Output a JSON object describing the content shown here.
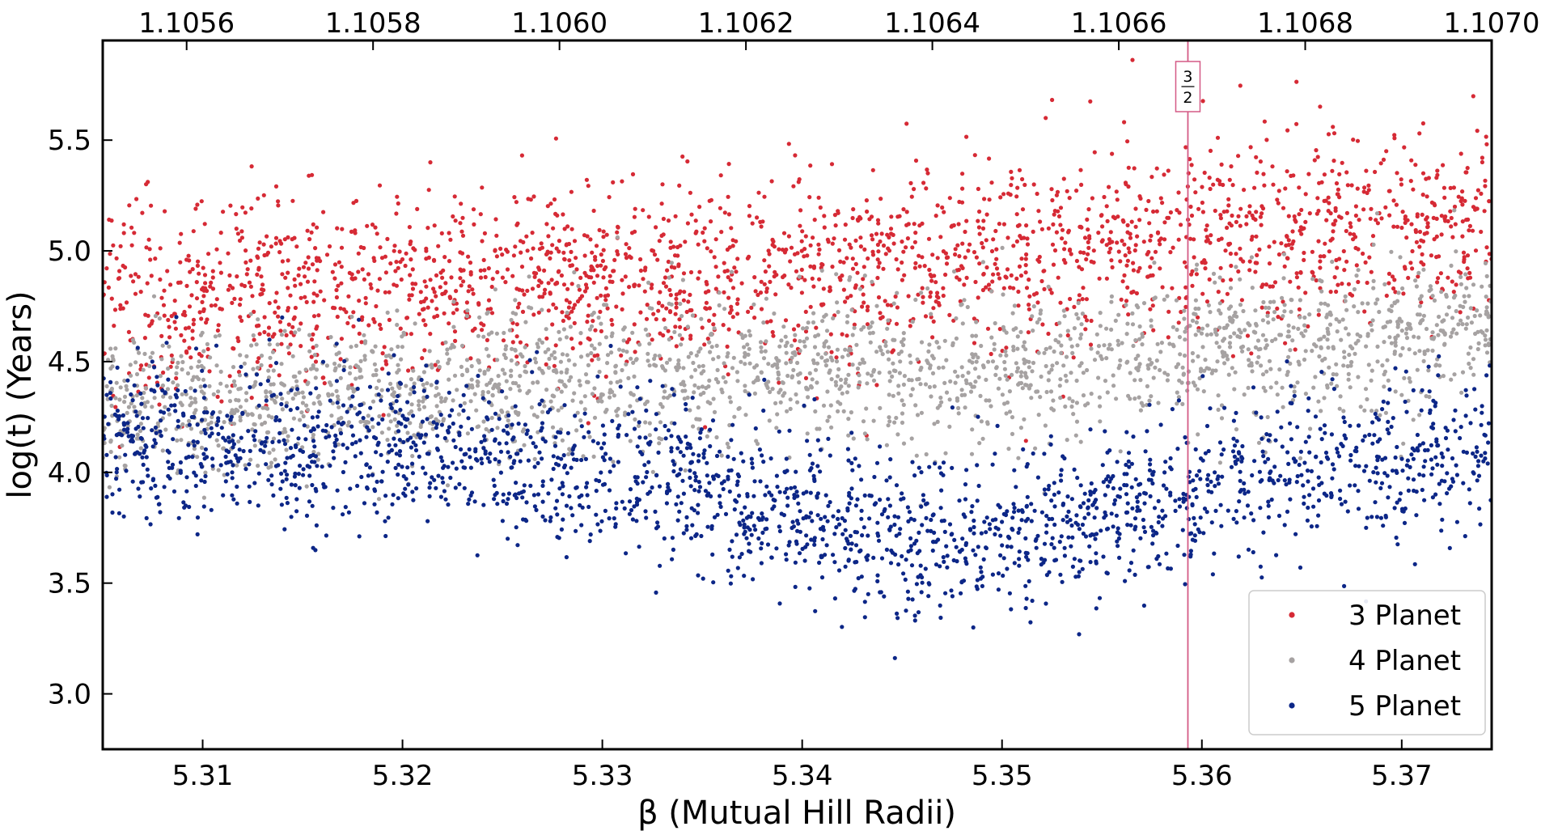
{
  "chart_data": {
    "type": "scatter",
    "title": "",
    "xlabel": "β (Mutual Hill Radii)",
    "ylabel": "log(t) (Years)",
    "xlim": [
      5.305,
      5.3745
    ],
    "ylim": [
      2.75,
      5.95
    ],
    "x_ticks": [
      "5.31",
      "5.32",
      "5.33",
      "5.34",
      "5.35",
      "5.36",
      "5.37"
    ],
    "y_ticks": [
      "3.0",
      "3.5",
      "4.0",
      "4.5",
      "5.0",
      "5.5"
    ],
    "top_axis": {
      "xlim": [
        1.10551,
        1.107
      ],
      "ticks": [
        "1.1056",
        "1.1058",
        "1.1060",
        "1.1062",
        "1.1064",
        "1.1066",
        "1.1068",
        "1.1070"
      ]
    },
    "resonance_line": {
      "x": 5.3593,
      "numerator": "3",
      "denominator": "2",
      "color": "#d45a86"
    },
    "legend_position": "bottom-right",
    "grid": false,
    "series": [
      {
        "name": "3 Planet",
        "color": "#d62a35",
        "trend_x": [
          5.305,
          5.32,
          5.335,
          5.35,
          5.365,
          5.3745
        ],
        "trend_y": [
          4.78,
          4.85,
          4.88,
          4.98,
          5.1,
          5.15
        ],
        "spread_sd": 0.22
      },
      {
        "name": "4 Planet",
        "color": "#a6a2a2",
        "trend_x": [
          5.305,
          5.32,
          5.335,
          5.35,
          5.365,
          5.3745
        ],
        "trend_y": [
          4.3,
          4.38,
          4.45,
          4.45,
          4.6,
          4.65
        ],
        "spread_sd": 0.17
      },
      {
        "name": "5 Planet",
        "color": "#0c2687",
        "trend_x": [
          5.305,
          5.32,
          5.335,
          5.345,
          5.35,
          5.365,
          5.3745
        ],
        "trend_y": [
          4.12,
          4.1,
          3.95,
          3.68,
          3.72,
          4.02,
          4.08
        ],
        "spread_sd": 0.18
      }
    ]
  }
}
